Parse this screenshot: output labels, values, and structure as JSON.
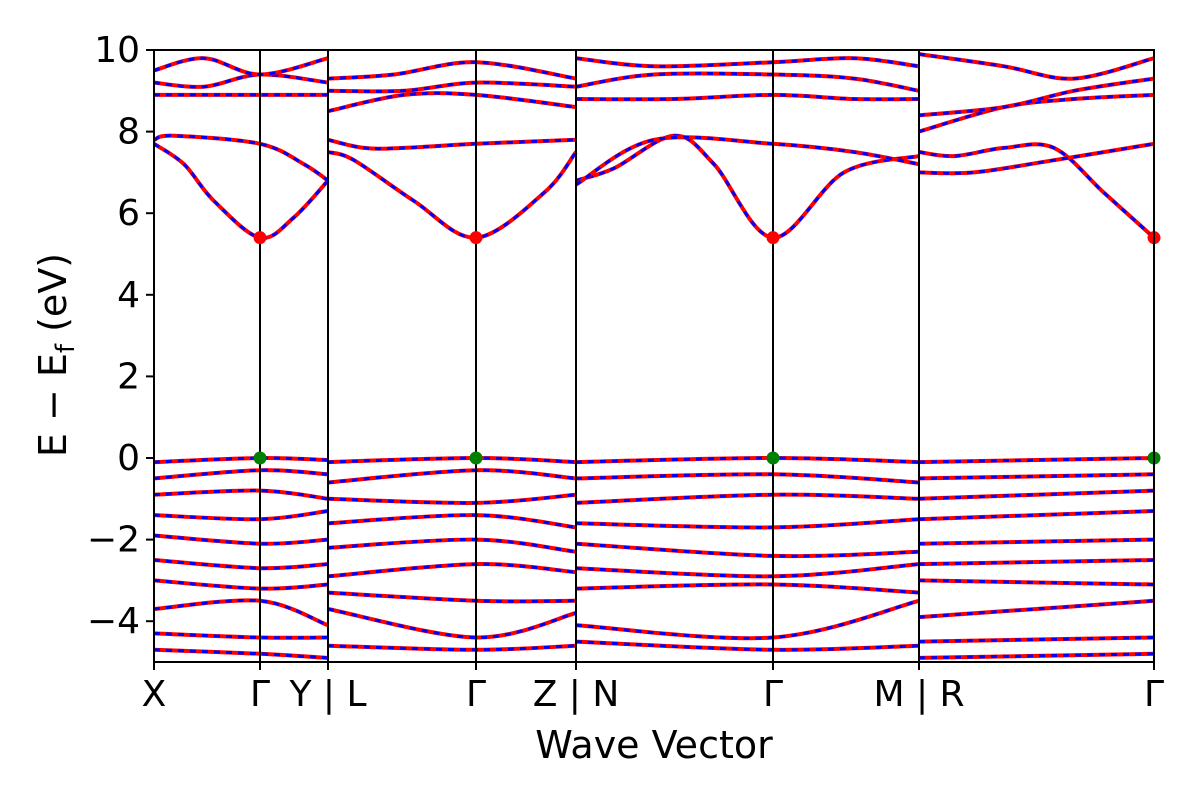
{
  "chart_data": {
    "type": "line",
    "xlabel": "Wave Vector",
    "ylabel": "E − E_f (eV)",
    "ylabel_main": "E − E",
    "ylabel_sub": "f",
    "ylabel_unit": " (eV)",
    "ylim": [
      -5,
      10
    ],
    "yticks": [
      -4,
      -2,
      0,
      2,
      4,
      6,
      8,
      10
    ],
    "ytick_labels": [
      "−4",
      "−2",
      "0",
      "2",
      "4",
      "6",
      "8",
      "10"
    ],
    "k_points": [
      {
        "label": "X",
        "k": 0.0
      },
      {
        "label": "Γ",
        "k": 0.106
      },
      {
        "label": "Y | L",
        "k": 0.174
      },
      {
        "label": "Γ",
        "k": 0.322
      },
      {
        "label": "Z | N",
        "k": 0.422
      },
      {
        "label": "Γ",
        "k": 0.619
      },
      {
        "label": "M | R",
        "k": 0.765
      },
      {
        "label": "Γ",
        "k": 1.0
      }
    ],
    "path_breaks": [
      0.174,
      0.422,
      0.765
    ],
    "colors": {
      "series_a": "#ff0000",
      "series_b": "#0000ff",
      "cbm": "#ff0000",
      "vbm": "#008000"
    },
    "conduction_band_min": {
      "energy": 5.4,
      "k": [
        0.106,
        0.322,
        0.619,
        1.0
      ]
    },
    "valence_band_max": {
      "energy": 0.0,
      "k": [
        0.106,
        0.322,
        0.619,
        1.0
      ]
    },
    "conduction_bands": [
      {
        "k": [
          0.0,
          0.03,
          0.06,
          0.106,
          0.14,
          0.174
        ],
        "e": [
          7.7,
          7.2,
          6.3,
          5.4,
          5.9,
          6.8
        ]
      },
      {
        "k": [
          0.0,
          0.02,
          0.106,
          0.15,
          0.174
        ],
        "e": [
          7.8,
          7.9,
          7.7,
          7.2,
          6.8
        ]
      },
      {
        "k": [
          0.174,
          0.2,
          0.26,
          0.322,
          0.39,
          0.422
        ],
        "e": [
          7.5,
          7.3,
          6.3,
          5.4,
          6.5,
          7.5
        ]
      },
      {
        "k": [
          0.174,
          0.21,
          0.25,
          0.322,
          0.422
        ],
        "e": [
          7.8,
          7.6,
          7.6,
          7.7,
          7.8
        ]
      },
      {
        "k": [
          0.422,
          0.46,
          0.52,
          0.56,
          0.619,
          0.69,
          0.765
        ],
        "e": [
          6.8,
          7.1,
          7.9,
          7.2,
          5.4,
          7.0,
          7.4
        ]
      },
      {
        "k": [
          0.422,
          0.5,
          0.619,
          0.7,
          0.765
        ],
        "e": [
          6.7,
          7.8,
          7.7,
          7.5,
          7.2
        ]
      },
      {
        "k": [
          0.765,
          0.8,
          0.85,
          0.9,
          0.95,
          1.0
        ],
        "e": [
          7.5,
          7.4,
          7.6,
          7.6,
          6.5,
          5.4
        ]
      },
      {
        "k": [
          0.765,
          0.82,
          0.9,
          1.0
        ],
        "e": [
          7.0,
          7.0,
          7.3,
          7.7
        ]
      },
      {
        "k": [
          0.0,
          0.106,
          0.174
        ],
        "e": [
          8.9,
          8.9,
          8.9
        ]
      },
      {
        "k": [
          0.0,
          0.05,
          0.106,
          0.174
        ],
        "e": [
          9.2,
          9.1,
          9.4,
          9.2
        ]
      },
      {
        "k": [
          0.0,
          0.05,
          0.106,
          0.174
        ],
        "e": [
          9.5,
          9.8,
          9.4,
          9.8
        ]
      },
      {
        "k": [
          0.174,
          0.25,
          0.322,
          0.422
        ],
        "e": [
          8.5,
          8.9,
          8.9,
          8.6
        ]
      },
      {
        "k": [
          0.174,
          0.24,
          0.322,
          0.422
        ],
        "e": [
          9.3,
          9.4,
          9.7,
          9.3
        ]
      },
      {
        "k": [
          0.174,
          0.25,
          0.322,
          0.422
        ],
        "e": [
          9.0,
          9.0,
          9.2,
          9.1
        ]
      },
      {
        "k": [
          0.422,
          0.52,
          0.619,
          0.7,
          0.765
        ],
        "e": [
          8.8,
          8.8,
          8.9,
          8.8,
          8.8
        ]
      },
      {
        "k": [
          0.422,
          0.5,
          0.619,
          0.7,
          0.765
        ],
        "e": [
          9.1,
          9.4,
          9.4,
          9.3,
          9.0
        ]
      },
      {
        "k": [
          0.422,
          0.5,
          0.619,
          0.7,
          0.765
        ],
        "e": [
          9.8,
          9.6,
          9.7,
          9.8,
          9.6
        ]
      },
      {
        "k": [
          0.765,
          0.85,
          0.92,
          1.0
        ],
        "e": [
          8.0,
          8.6,
          8.8,
          8.9
        ]
      },
      {
        "k": [
          0.765,
          0.85,
          0.92,
          1.0
        ],
        "e": [
          8.4,
          8.6,
          9.0,
          9.3
        ]
      },
      {
        "k": [
          0.765,
          0.85,
          0.92,
          1.0
        ],
        "e": [
          9.9,
          9.6,
          9.3,
          9.8
        ]
      }
    ],
    "valence_bands": [
      {
        "k": [
          0.0,
          0.106,
          0.174
        ],
        "e": [
          -0.1,
          0.0,
          -0.05
        ]
      },
      {
        "k": [
          0.0,
          0.106,
          0.174
        ],
        "e": [
          -0.5,
          -0.3,
          -0.4
        ]
      },
      {
        "k": [
          0.0,
          0.106,
          0.174
        ],
        "e": [
          -0.9,
          -0.8,
          -1.0
        ]
      },
      {
        "k": [
          0.0,
          0.106,
          0.174
        ],
        "e": [
          -1.4,
          -1.5,
          -1.3
        ]
      },
      {
        "k": [
          0.0,
          0.106,
          0.174
        ],
        "e": [
          -1.9,
          -2.1,
          -2.0
        ]
      },
      {
        "k": [
          0.0,
          0.106,
          0.174
        ],
        "e": [
          -2.5,
          -2.7,
          -2.6
        ]
      },
      {
        "k": [
          0.0,
          0.106,
          0.174
        ],
        "e": [
          -3.0,
          -3.2,
          -3.1
        ]
      },
      {
        "k": [
          0.0,
          0.106,
          0.174
        ],
        "e": [
          -3.7,
          -3.5,
          -4.1
        ]
      },
      {
        "k": [
          0.0,
          0.106,
          0.174
        ],
        "e": [
          -4.3,
          -4.4,
          -4.4
        ]
      },
      {
        "k": [
          0.0,
          0.106,
          0.174
        ],
        "e": [
          -4.7,
          -4.8,
          -4.9
        ]
      },
      {
        "k": [
          0.174,
          0.322,
          0.422
        ],
        "e": [
          -0.1,
          0.0,
          -0.1
        ]
      },
      {
        "k": [
          0.174,
          0.322,
          0.422
        ],
        "e": [
          -0.6,
          -0.3,
          -0.5
        ]
      },
      {
        "k": [
          0.174,
          0.322,
          0.422
        ],
        "e": [
          -1.0,
          -1.1,
          -0.9
        ]
      },
      {
        "k": [
          0.174,
          0.322,
          0.422
        ],
        "e": [
          -1.6,
          -1.4,
          -1.7
        ]
      },
      {
        "k": [
          0.174,
          0.322,
          0.422
        ],
        "e": [
          -2.2,
          -2.0,
          -2.3
        ]
      },
      {
        "k": [
          0.174,
          0.322,
          0.422
        ],
        "e": [
          -2.9,
          -2.6,
          -2.8
        ]
      },
      {
        "k": [
          0.174,
          0.322,
          0.422
        ],
        "e": [
          -3.3,
          -3.5,
          -3.5
        ]
      },
      {
        "k": [
          0.174,
          0.322,
          0.422
        ],
        "e": [
          -3.7,
          -4.4,
          -3.8
        ]
      },
      {
        "k": [
          0.174,
          0.322,
          0.422
        ],
        "e": [
          -4.6,
          -4.7,
          -4.6
        ]
      },
      {
        "k": [
          0.422,
          0.619,
          0.765
        ],
        "e": [
          -0.1,
          0.0,
          -0.1
        ]
      },
      {
        "k": [
          0.422,
          0.619,
          0.765
        ],
        "e": [
          -0.5,
          -0.4,
          -0.6
        ]
      },
      {
        "k": [
          0.422,
          0.619,
          0.765
        ],
        "e": [
          -1.1,
          -0.9,
          -1.0
        ]
      },
      {
        "k": [
          0.422,
          0.619,
          0.765
        ],
        "e": [
          -1.6,
          -1.7,
          -1.5
        ]
      },
      {
        "k": [
          0.422,
          0.619,
          0.765
        ],
        "e": [
          -2.1,
          -2.4,
          -2.3
        ]
      },
      {
        "k": [
          0.422,
          0.619,
          0.765
        ],
        "e": [
          -2.7,
          -2.9,
          -2.6
        ]
      },
      {
        "k": [
          0.422,
          0.619,
          0.765
        ],
        "e": [
          -3.2,
          -3.1,
          -3.3
        ]
      },
      {
        "k": [
          0.422,
          0.619,
          0.765
        ],
        "e": [
          -4.1,
          -4.4,
          -3.5
        ]
      },
      {
        "k": [
          0.422,
          0.619,
          0.765
        ],
        "e": [
          -4.5,
          -4.7,
          -4.6
        ]
      },
      {
        "k": [
          0.765,
          1.0
        ],
        "e": [
          -0.1,
          0.0
        ]
      },
      {
        "k": [
          0.765,
          1.0
        ],
        "e": [
          -0.5,
          -0.4
        ]
      },
      {
        "k": [
          0.765,
          1.0
        ],
        "e": [
          -1.0,
          -0.8
        ]
      },
      {
        "k": [
          0.765,
          1.0
        ],
        "e": [
          -1.5,
          -1.3
        ]
      },
      {
        "k": [
          0.765,
          1.0
        ],
        "e": [
          -2.1,
          -2.0
        ]
      },
      {
        "k": [
          0.765,
          1.0
        ],
        "e": [
          -2.6,
          -2.5
        ]
      },
      {
        "k": [
          0.765,
          1.0
        ],
        "e": [
          -3.0,
          -3.1
        ]
      },
      {
        "k": [
          0.765,
          1.0
        ],
        "e": [
          -3.9,
          -3.5
        ]
      },
      {
        "k": [
          0.765,
          1.0
        ],
        "e": [
          -4.5,
          -4.4
        ]
      },
      {
        "k": [
          0.765,
          1.0
        ],
        "e": [
          -4.9,
          -4.8
        ]
      }
    ]
  }
}
